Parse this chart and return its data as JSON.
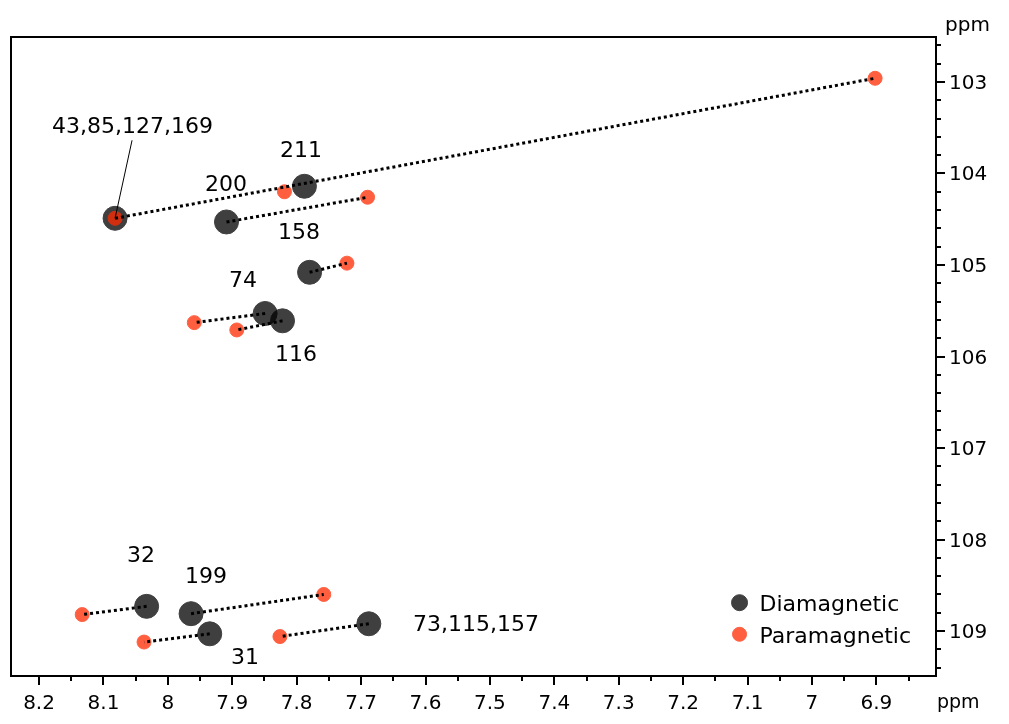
{
  "chart_data": {
    "type": "scatter",
    "xlabel": "ppm",
    "ylabel": "ppm",
    "xlim": [
      8.242,
      6.809
    ],
    "xticks": [
      8.2,
      8.1,
      8.0,
      7.9,
      7.8,
      7.7,
      7.6,
      7.5,
      7.4,
      7.3,
      7.2,
      7.1,
      7.0,
      6.9
    ],
    "ylim": [
      109.48,
      102.52
    ],
    "yticks": [
      103,
      104,
      105,
      106,
      107,
      108,
      109
    ],
    "legend": "bottom right",
    "marker": "circle",
    "series": [
      {
        "name": "Diamagnetic",
        "color": "#000000",
        "x": [
          8.082,
          7.909,
          7.788,
          7.78,
          7.849,
          7.822,
          8.033,
          7.964,
          7.935,
          7.688
        ],
        "values": [
          104.49,
          104.53,
          104.14,
          105.08,
          105.53,
          105.61,
          108.73,
          108.81,
          109.03,
          108.92
        ]
      },
      {
        "name": "Paramagnetic",
        "color": "#ff2a00",
        "x": [
          8.082,
          6.902,
          7.69,
          7.819,
          7.722,
          7.959,
          7.893,
          8.133,
          7.758,
          8.037,
          7.826
        ],
        "values": [
          104.49,
          102.96,
          104.26,
          104.2,
          104.98,
          105.63,
          105.71,
          108.82,
          108.6,
          109.12,
          109.06
        ]
      },
      {
        "type": "line",
        "color": "#000000",
        "line_style": "dotted",
        "marker": "none",
        "x": [
          8.082,
          6.902
        ],
        "values": [
          104.49,
          102.96
        ]
      },
      {
        "type": "line",
        "color": "#000000",
        "line_style": "dotted",
        "marker": "none",
        "x": [
          7.909,
          7.69
        ],
        "values": [
          104.53,
          104.26
        ]
      },
      {
        "type": "line",
        "color": "#000000",
        "line_style": "dotted",
        "marker": "none",
        "x": [
          7.78,
          7.722
        ],
        "values": [
          105.08,
          104.98
        ]
      },
      {
        "type": "line",
        "color": "#000000",
        "line_style": "dotted",
        "marker": "none",
        "x": [
          7.849,
          7.959
        ],
        "values": [
          105.53,
          105.63
        ]
      },
      {
        "type": "line",
        "color": "#000000",
        "line_style": "dotted",
        "marker": "none",
        "x": [
          7.822,
          7.893
        ],
        "values": [
          105.61,
          105.71
        ]
      },
      {
        "type": "line",
        "color": "#000000",
        "line_style": "dotted",
        "marker": "none",
        "x": [
          8.033,
          8.133
        ],
        "values": [
          108.73,
          108.82
        ]
      },
      {
        "type": "line",
        "color": "#000000",
        "line_style": "dotted",
        "marker": "none",
        "x": [
          7.964,
          7.758
        ],
        "values": [
          108.81,
          108.6
        ]
      },
      {
        "type": "line",
        "color": "#000000",
        "line_style": "dotted",
        "marker": "none",
        "x": [
          7.935,
          8.037
        ],
        "values": [
          109.03,
          109.12
        ]
      },
      {
        "type": "line",
        "color": "#000000",
        "line_style": "dotted",
        "marker": "none",
        "x": [
          7.688,
          7.826
        ],
        "values": [
          108.92,
          109.06
        ]
      }
    ],
    "annotations": [
      {
        "text": "43,85,127,169",
        "x": 8.082,
        "y": 104.49
      },
      {
        "text": "211",
        "x": 7.788,
        "y": 104.14
      },
      {
        "text": "200",
        "x": 7.909,
        "y": 104.53
      },
      {
        "text": "158",
        "x": 7.78,
        "y": 105.08
      },
      {
        "text": "74",
        "x": 7.849,
        "y": 105.53
      },
      {
        "text": "116",
        "x": 7.822,
        "y": 105.61
      },
      {
        "text": "32",
        "x": 8.033,
        "y": 108.73
      },
      {
        "text": "199",
        "x": 7.964,
        "y": 108.81
      },
      {
        "text": "31",
        "x": 7.935,
        "y": 109.03
      },
      {
        "text": "73,115,157",
        "x": 7.688,
        "y": 108.92
      }
    ]
  }
}
